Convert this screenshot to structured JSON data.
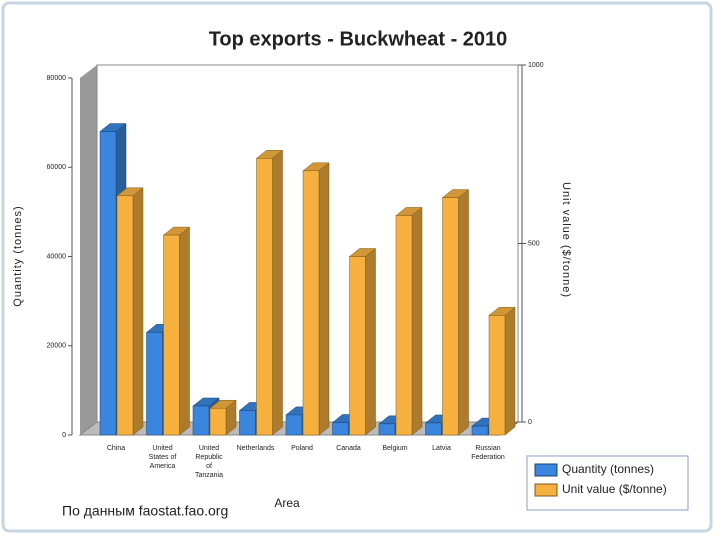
{
  "chart_data": {
    "type": "bar3d",
    "title": "Top exports - Buckwheat - 2010",
    "x_label": "Area",
    "y_label": "Quantity (tonnes)",
    "y2_label": "Unit value ($/tonne)",
    "annotation": "По данным faostat.fao.org",
    "categories": [
      "China",
      "United States of America",
      "United Republic of Tanzania",
      "Netherlands",
      "Poland",
      "Canada",
      "Belgium",
      "Latvia",
      "Russian Federation"
    ],
    "series": [
      {
        "name": "Quantity (tonnes)",
        "color": "#3a86de",
        "values": [
          68000,
          23000,
          6500,
          5500,
          4500,
          2800,
          2500,
          2700,
          2000
        ]
      },
      {
        "name": "Unit value ($/tonne)",
        "color": "#f6b03e",
        "axis": "y2",
        "values": [
          670,
          560,
          75,
          775,
          740,
          500,
          615,
          665,
          335
        ]
      }
    ],
    "ylim": [
      0,
      80000
    ],
    "yticks": [
      0,
      20000,
      40000,
      60000,
      80000
    ],
    "y2lim": [
      0,
      1000
    ],
    "y2ticks": [
      0,
      500,
      1000
    ],
    "legend": "bottom-right",
    "grid": false
  }
}
